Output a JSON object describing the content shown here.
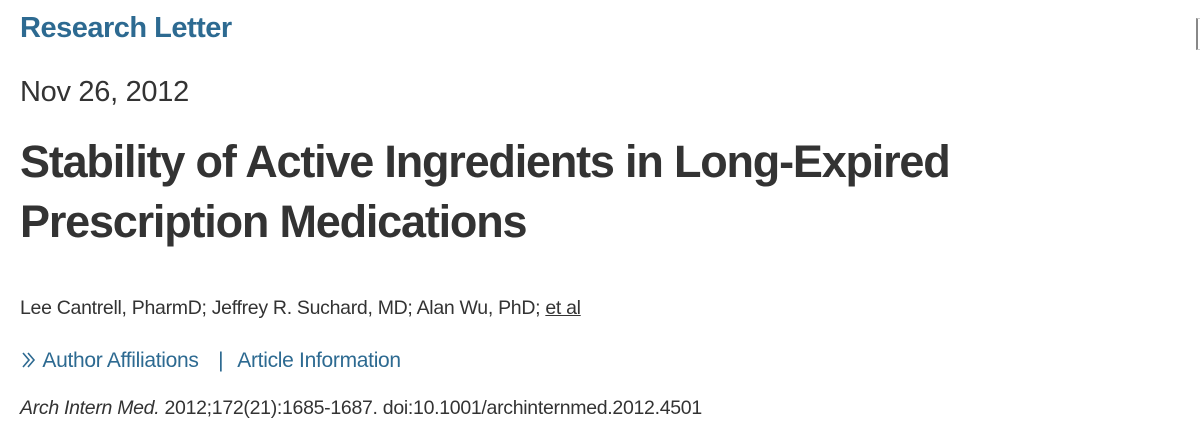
{
  "article_type": "Research Letter",
  "date": "Nov 26, 2012",
  "title_line1": "Stability of Active Ingredients in Long-Expired",
  "title_line2": "Prescription Medications",
  "authors": "Lee Cantrell, PharmD; Jeffrey R. Suchard, MD; Alan Wu, PhD; ",
  "et_al": "et al",
  "links": {
    "chevron_icon": "double-chevron-right",
    "author_affiliations": "Author Affiliations",
    "separator": "|",
    "article_information": "Article Information"
  },
  "citation": {
    "journal": "Arch Intern Med.",
    "details": " 2012;172(21):1685-1687. doi:10.1001/archinternmed.2012.4501"
  },
  "colors": {
    "accent": "#2d6a91",
    "text": "#333333"
  }
}
